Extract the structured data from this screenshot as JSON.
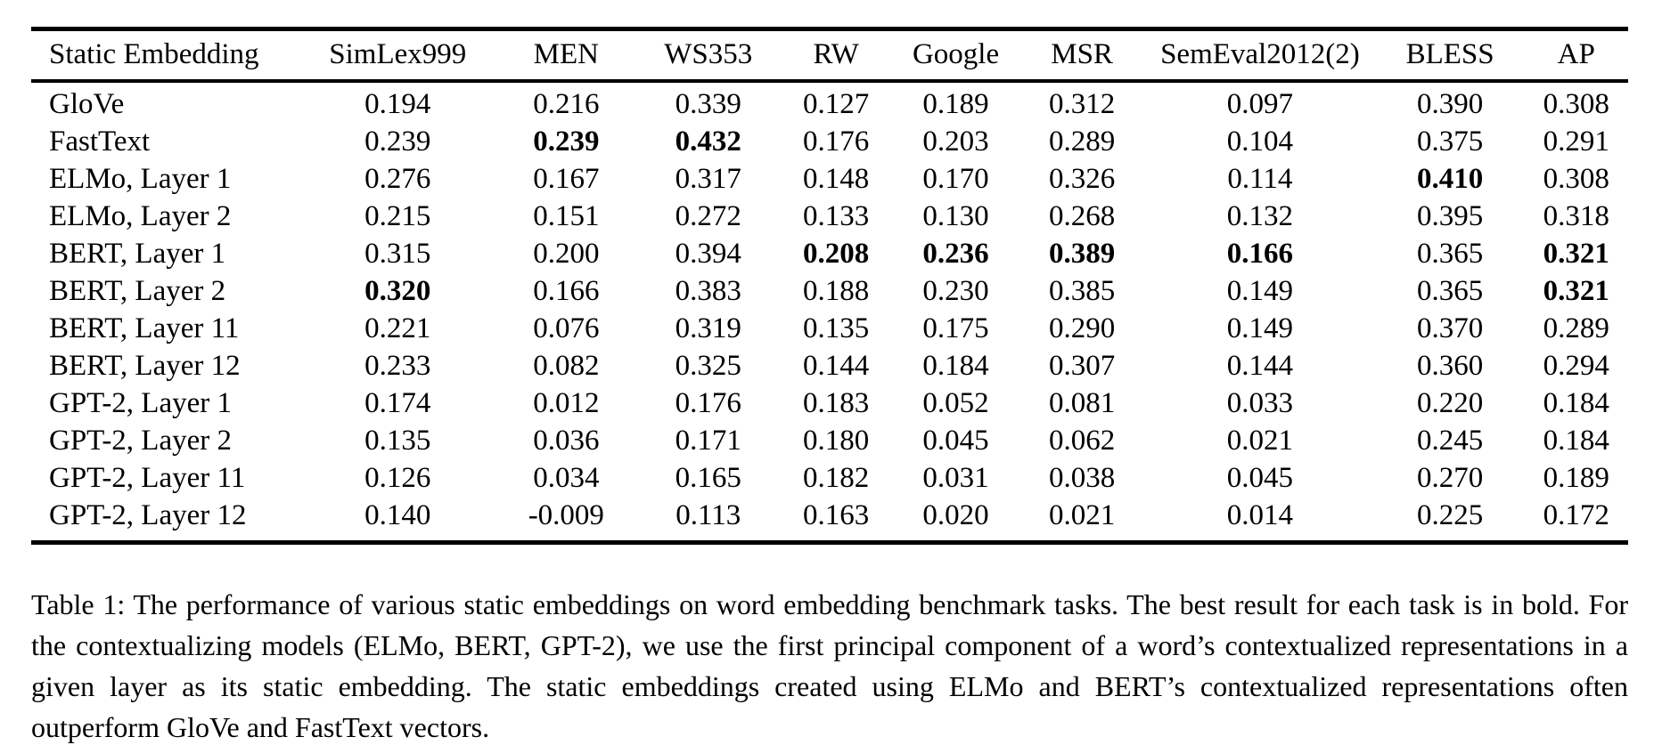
{
  "page": {
    "background_color": "#ffffff",
    "text_color": "#000000"
  },
  "table": {
    "columns": [
      "Static Embedding",
      "SimLex999",
      "MEN",
      "WS353",
      "RW",
      "Google",
      "MSR",
      "SemEval2012(2)",
      "BLESS",
      "AP"
    ],
    "rows": [
      {
        "label": "GloVe",
        "values": [
          "0.194",
          "0.216",
          "0.339",
          "0.127",
          "0.189",
          "0.312",
          "0.097",
          "0.390",
          "0.308"
        ],
        "bold": []
      },
      {
        "label": "FastText",
        "values": [
          "0.239",
          "0.239",
          "0.432",
          "0.176",
          "0.203",
          "0.289",
          "0.104",
          "0.375",
          "0.291"
        ],
        "bold": [
          1,
          2
        ]
      },
      {
        "label": "ELMo, Layer 1",
        "values": [
          "0.276",
          "0.167",
          "0.317",
          "0.148",
          "0.170",
          "0.326",
          "0.114",
          "0.410",
          "0.308"
        ],
        "bold": [
          7
        ]
      },
      {
        "label": "ELMo, Layer 2",
        "values": [
          "0.215",
          "0.151",
          "0.272",
          "0.133",
          "0.130",
          "0.268",
          "0.132",
          "0.395",
          "0.318"
        ],
        "bold": []
      },
      {
        "label": "BERT, Layer 1",
        "values": [
          "0.315",
          "0.200",
          "0.394",
          "0.208",
          "0.236",
          "0.389",
          "0.166",
          "0.365",
          "0.321"
        ],
        "bold": [
          3,
          4,
          5,
          6,
          8
        ]
      },
      {
        "label": "BERT, Layer 2",
        "values": [
          "0.320",
          "0.166",
          "0.383",
          "0.188",
          "0.230",
          "0.385",
          "0.149",
          "0.365",
          "0.321"
        ],
        "bold": [
          0,
          8
        ]
      },
      {
        "label": "BERT, Layer 11",
        "values": [
          "0.221",
          "0.076",
          "0.319",
          "0.135",
          "0.175",
          "0.290",
          "0.149",
          "0.370",
          "0.289"
        ],
        "bold": []
      },
      {
        "label": "BERT, Layer 12",
        "values": [
          "0.233",
          "0.082",
          "0.325",
          "0.144",
          "0.184",
          "0.307",
          "0.144",
          "0.360",
          "0.294"
        ],
        "bold": []
      },
      {
        "label": "GPT-2, Layer 1",
        "values": [
          "0.174",
          "0.012",
          "0.176",
          "0.183",
          "0.052",
          "0.081",
          "0.033",
          "0.220",
          "0.184"
        ],
        "bold": []
      },
      {
        "label": "GPT-2, Layer 2",
        "values": [
          "0.135",
          "0.036",
          "0.171",
          "0.180",
          "0.045",
          "0.062",
          "0.021",
          "0.245",
          "0.184"
        ],
        "bold": []
      },
      {
        "label": "GPT-2, Layer 11",
        "values": [
          "0.126",
          "0.034",
          "0.165",
          "0.182",
          "0.031",
          "0.038",
          "0.045",
          "0.270",
          "0.189"
        ],
        "bold": []
      },
      {
        "label": "GPT-2, Layer 12",
        "values": [
          "0.140",
          "-0.009",
          "0.113",
          "0.163",
          "0.020",
          "0.021",
          "0.014",
          "0.225",
          "0.172"
        ],
        "bold": []
      }
    ]
  },
  "caption": {
    "text": "Table 1: The performance of various static embeddings on word embedding benchmark tasks. The best result for each task is in bold. For the contextualizing models (ELMo, BERT, GPT-2), we use the first principal component of a word’s contextualized representations in a given layer as its static embedding. The static embeddings created using ELMo and BERT’s contextualized representations often outperform GloVe and FastText vectors."
  }
}
